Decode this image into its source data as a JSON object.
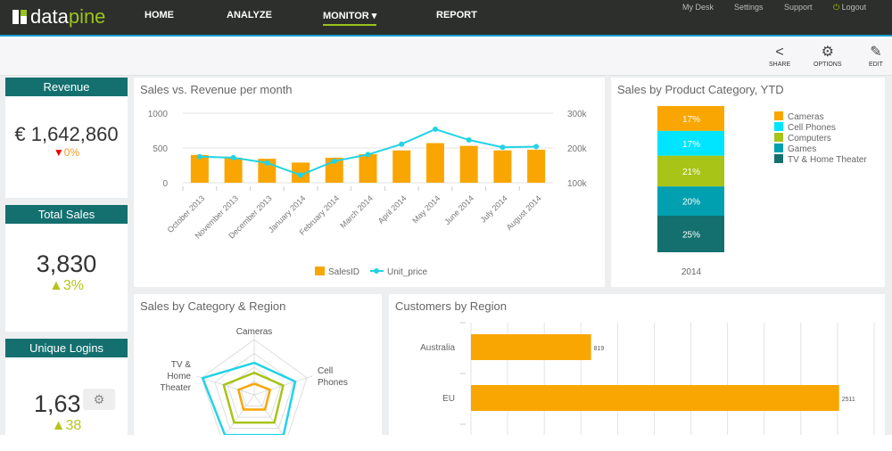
{
  "nav": {
    "brand_a": "data",
    "brand_b": "pine",
    "items": [
      "HOME",
      "ANALYZE",
      "MONITOR ▾",
      "REPORT"
    ],
    "active": "MONITOR ▾",
    "top_links": [
      "My Desk",
      "Settings",
      "Support",
      "Logout"
    ]
  },
  "toolbar": {
    "share": "SHARE",
    "options": "OPTIONS",
    "edit": "EDIT"
  },
  "kpis": [
    {
      "title": "Revenue",
      "value": "€ 1,642,860",
      "change": "0%",
      "direction": "down"
    },
    {
      "title": "Total Sales",
      "value": "3,830",
      "change": "3%",
      "direction": "up"
    },
    {
      "title": "Unique Logins",
      "value": "1,63",
      "change": "38",
      "direction": "up"
    }
  ],
  "colors": {
    "orange": "#f9a602",
    "cyan": "#22d3e6",
    "teal": "#13706f",
    "green": "#a8c417"
  },
  "chart_data": [
    {
      "type": "bar+line",
      "title": "Sales vs. Revenue per month",
      "categories": [
        "October 2013",
        "November 2013",
        "December 2013",
        "January 2014",
        "February 2014",
        "March 2014",
        "April 2014",
        "May 2014",
        "June 2014",
        "July 2014",
        "August 2014"
      ],
      "series": [
        {
          "name": "SalesID",
          "type": "bar",
          "axis": "left",
          "values": [
            400,
            360,
            345,
            290,
            360,
            410,
            465,
            570,
            530,
            465,
            475
          ]
        },
        {
          "name": "Unit_price",
          "type": "line",
          "axis": "right",
          "values": [
            175000,
            172000,
            157000,
            122000,
            162000,
            181000,
            211000,
            254000,
            223000,
            202000,
            204000
          ]
        }
      ],
      "ylim_left": [
        0,
        1000
      ],
      "yticks_left": [
        "0",
        "500",
        "1000"
      ],
      "ylim_right": [
        100000,
        300000
      ],
      "yticks_right": [
        "100k",
        "200k",
        "300k"
      ],
      "legend": "bottom",
      "grid": true
    },
    {
      "type": "stacked-bar",
      "title": "Sales by Product Category, YTD",
      "categories": [
        "2014"
      ],
      "series": [
        {
          "name": "Cameras",
          "value": 17,
          "label": "17%",
          "color": "#f9a602"
        },
        {
          "name": "Cell Phones",
          "value": 17,
          "label": "17%",
          "color": "#00e5ff"
        },
        {
          "name": "Computers",
          "value": 21,
          "label": "21%",
          "color": "#a8c417"
        },
        {
          "name": "Games",
          "value": 20,
          "label": "20%",
          "color": "#00a0b0"
        },
        {
          "name": "TV & Home Theater",
          "value": 25,
          "label": "25%",
          "color": "#13706f"
        }
      ],
      "legend": "right"
    },
    {
      "type": "radar",
      "title": "Sales by Category & Region",
      "axes": [
        "Cameras",
        "Cell Phones",
        "",
        "",
        "TV & Home Theater"
      ],
      "axis_labels": [
        [
          "Cameras"
        ],
        [
          "Cell",
          "Phones"
        ],
        [],
        [],
        [
          "TV &",
          "Home",
          "Theater"
        ]
      ],
      "series": [
        {
          "color": "#22d3e6",
          "values": [
            0.58,
            0.78,
            0.9,
            0.9,
            0.98
          ]
        },
        {
          "color": "#a8c417",
          "values": [
            0.4,
            0.55,
            0.62,
            0.62,
            0.58
          ]
        },
        {
          "color": "#f9a602",
          "values": [
            0.2,
            0.3,
            0.33,
            0.33,
            0.3
          ]
        }
      ]
    },
    {
      "type": "bar",
      "orientation": "horizontal",
      "title": "Customers by Region",
      "categories": [
        "Australia",
        "EU"
      ],
      "values": [
        819,
        2511
      ],
      "labels": [
        "819",
        "2511"
      ],
      "xlim": [
        0,
        2750
      ],
      "grid": true
    }
  ]
}
